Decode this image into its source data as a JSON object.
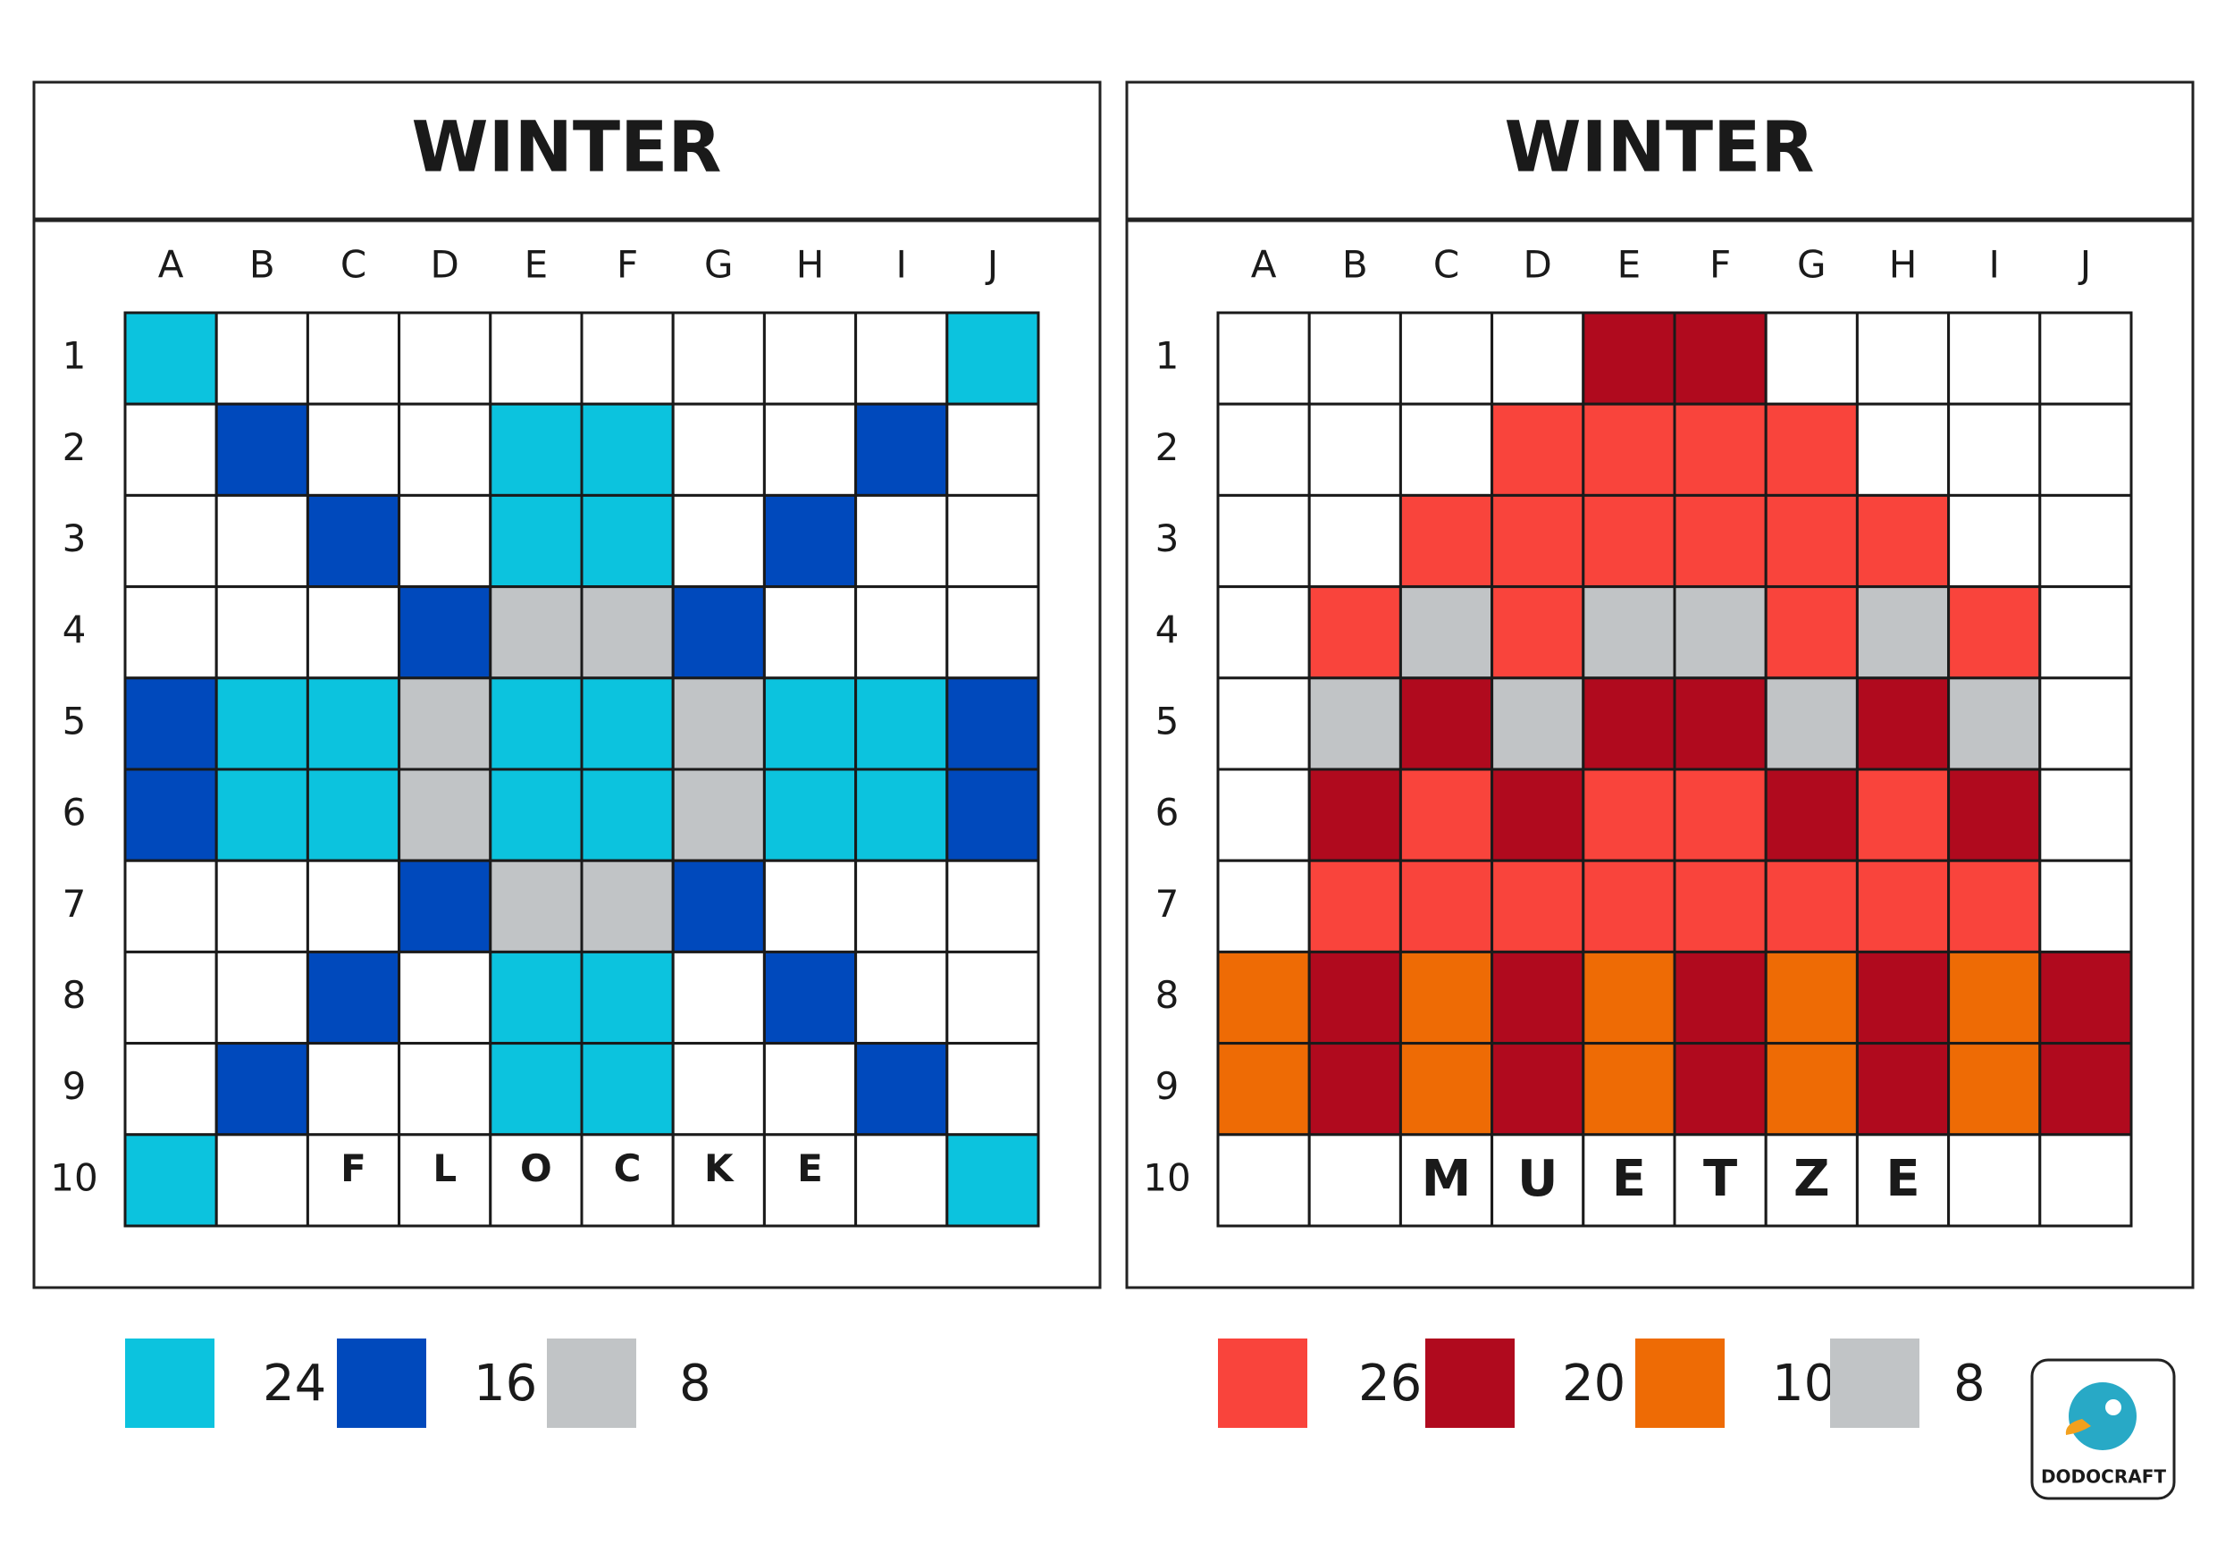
{
  "panels": [
    {
      "title": "WINTER",
      "columns": [
        "A",
        "B",
        "C",
        "D",
        "E",
        "F",
        "G",
        "H",
        "I",
        "J"
      ],
      "rows": [
        "1",
        "2",
        "3",
        "4",
        "5",
        "6",
        "7",
        "8",
        "9",
        "10"
      ],
      "cells": [
        [
          "#0cc3de",
          "#ffffff",
          "#ffffff",
          "#ffffff",
          "#ffffff",
          "#ffffff",
          "#ffffff",
          "#ffffff",
          "#ffffff",
          "#0cc3de"
        ],
        [
          "#ffffff",
          "#0049bc",
          "#ffffff",
          "#ffffff",
          "#0cc3de",
          "#0cc3de",
          "#ffffff",
          "#ffffff",
          "#0049bc",
          "#ffffff"
        ],
        [
          "#ffffff",
          "#ffffff",
          "#0049bc",
          "#ffffff",
          "#0cc3de",
          "#0cc3de",
          "#ffffff",
          "#0049bc",
          "#ffffff",
          "#ffffff"
        ],
        [
          "#ffffff",
          "#ffffff",
          "#ffffff",
          "#0049bc",
          "#c1c4c6",
          "#c1c4c6",
          "#0049bc",
          "#ffffff",
          "#ffffff",
          "#ffffff"
        ],
        [
          "#0049bc",
          "#0cc3de",
          "#0cc3de",
          "#c1c4c6",
          "#0cc3de",
          "#0cc3de",
          "#c1c4c6",
          "#0cc3de",
          "#0cc3de",
          "#0049bc"
        ],
        [
          "#0049bc",
          "#0cc3de",
          "#0cc3de",
          "#c1c4c6",
          "#0cc3de",
          "#0cc3de",
          "#c1c4c6",
          "#0cc3de",
          "#0cc3de",
          "#0049bc"
        ],
        [
          "#ffffff",
          "#ffffff",
          "#ffffff",
          "#0049bc",
          "#c1c4c6",
          "#c1c4c6",
          "#0049bc",
          "#ffffff",
          "#ffffff",
          "#ffffff"
        ],
        [
          "#ffffff",
          "#ffffff",
          "#0049bc",
          "#ffffff",
          "#0cc3de",
          "#0cc3de",
          "#ffffff",
          "#0049bc",
          "#ffffff",
          "#ffffff"
        ],
        [
          "#ffffff",
          "#0049bc",
          "#ffffff",
          "#ffffff",
          "#0cc3de",
          "#0cc3de",
          "#ffffff",
          "#ffffff",
          "#0049bc",
          "#ffffff"
        ],
        [
          "#0cc3de",
          "#ffffff",
          "#ffffff",
          "#ffffff",
          "#ffffff",
          "#ffffff",
          "#ffffff",
          "#ffffff",
          "#ffffff",
          "#0cc3de"
        ]
      ],
      "letters": [
        null,
        null,
        "F",
        "L",
        "O",
        "C",
        "K",
        "E",
        null,
        null
      ],
      "legend": [
        {
          "color": "#0cc3de",
          "count": 24
        },
        {
          "color": "#0049bc",
          "count": 16
        },
        {
          "color": "#c1c4c6",
          "count": 8
        }
      ]
    },
    {
      "title": "WINTER",
      "columns": [
        "A",
        "B",
        "C",
        "D",
        "E",
        "F",
        "G",
        "H",
        "I",
        "J"
      ],
      "rows": [
        "1",
        "2",
        "3",
        "4",
        "5",
        "6",
        "7",
        "8",
        "9",
        "10"
      ],
      "cells": [
        [
          "#ffffff",
          "#ffffff",
          "#ffffff",
          "#ffffff",
          "#b00a1e",
          "#b00a1e",
          "#ffffff",
          "#ffffff",
          "#ffffff",
          "#ffffff"
        ],
        [
          "#ffffff",
          "#ffffff",
          "#ffffff",
          "#f9443c",
          "#f9443c",
          "#f9443c",
          "#f9443c",
          "#ffffff",
          "#ffffff",
          "#ffffff"
        ],
        [
          "#ffffff",
          "#ffffff",
          "#f9443c",
          "#f9443c",
          "#f9443c",
          "#f9443c",
          "#f9443c",
          "#f9443c",
          "#ffffff",
          "#ffffff"
        ],
        [
          "#ffffff",
          "#f9443c",
          "#c1c4c6",
          "#f9443c",
          "#c1c4c6",
          "#c1c4c6",
          "#f9443c",
          "#c1c4c6",
          "#f9443c",
          "#ffffff"
        ],
        [
          "#ffffff",
          "#c1c4c6",
          "#b00a1e",
          "#c1c4c6",
          "#b00a1e",
          "#b00a1e",
          "#c1c4c6",
          "#b00a1e",
          "#c1c4c6",
          "#ffffff"
        ],
        [
          "#ffffff",
          "#b00a1e",
          "#f9443c",
          "#b00a1e",
          "#f9443c",
          "#f9443c",
          "#b00a1e",
          "#f9443c",
          "#b00a1e",
          "#ffffff"
        ],
        [
          "#ffffff",
          "#f9443c",
          "#f9443c",
          "#f9443c",
          "#f9443c",
          "#f9443c",
          "#f9443c",
          "#f9443c",
          "#f9443c",
          "#ffffff"
        ],
        [
          "#ee6b05",
          "#b00a1e",
          "#ee6b05",
          "#b00a1e",
          "#ee6b05",
          "#b00a1e",
          "#ee6b05",
          "#b00a1e",
          "#ee6b05",
          "#b00a1e"
        ],
        [
          "#ee6b05",
          "#b00a1e",
          "#ee6b05",
          "#b00a1e",
          "#ee6b05",
          "#b00a1e",
          "#ee6b05",
          "#b00a1e",
          "#ee6b05",
          "#b00a1e"
        ],
        [
          "#ffffff",
          "#ffffff",
          "#ffffff",
          "#ffffff",
          "#ffffff",
          "#ffffff",
          "#ffffff",
          "#ffffff",
          "#ffffff",
          "#ffffff"
        ]
      ],
      "letters": [
        null,
        null,
        "M",
        "U",
        "E",
        "T",
        "Z",
        "E",
        null,
        null
      ],
      "legend": [
        {
          "color": "#f9443c",
          "count": 26
        },
        {
          "color": "#b00a1e",
          "count": 20
        },
        {
          "color": "#ee6b05",
          "count": 10
        },
        {
          "color": "#c1c4c6",
          "count": 8
        }
      ]
    }
  ],
  "logo": "DODOCRAFT"
}
